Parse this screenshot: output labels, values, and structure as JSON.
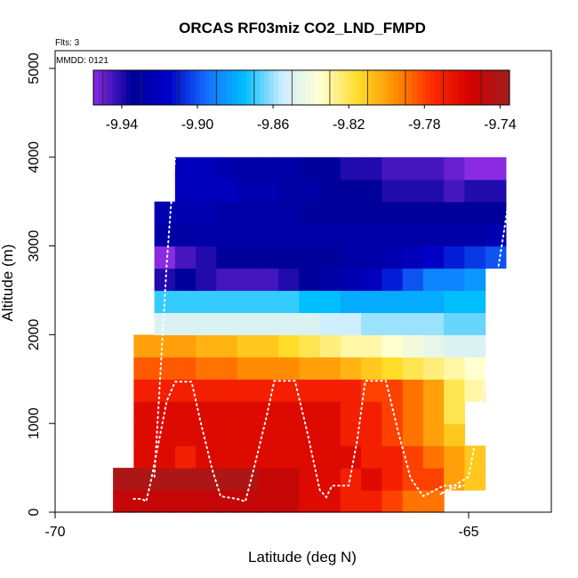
{
  "chart_data": {
    "type": "heatmap",
    "title": "ORCAS RF03miz CO2_LND_FMPD",
    "annotations": {
      "flights": "Flts: 3",
      "date": "MMDD: 0121"
    },
    "xlabel": "Latitude (deg N)",
    "ylabel": "Altitude (m)",
    "xlim": [
      -70,
      -64
    ],
    "ylim": [
      0,
      5200
    ],
    "x_ticks": [
      -70,
      -65
    ],
    "y_ticks": [
      0,
      1000,
      2000,
      3000,
      4000,
      5000
    ],
    "colorbar": {
      "min": -9.955,
      "max": -9.735,
      "ticks": [
        "-9.94",
        "-9.90",
        "-9.86",
        "-9.82",
        "-9.78",
        "-9.74"
      ],
      "tick_values": [
        -9.94,
        -9.9,
        -9.86,
        -9.82,
        -9.78,
        -9.74
      ],
      "colors": [
        "#8a2be2",
        "#00009a",
        "#0000c8",
        "#1470ff",
        "#00bfff",
        "#cfeeff",
        "#ffffd0",
        "#ffdc28",
        "#ff8c00",
        "#ff2800",
        "#d20000",
        "#a01e1e"
      ]
    },
    "grid": {
      "lat_start": -69.3,
      "lat_step": 0.25,
      "alt_step": 250,
      "rows": [
        {
          "alt": 0,
          "start": 0,
          "values": [
            -9.75,
            -9.75,
            -9.75,
            -9.75,
            -9.75,
            -9.75,
            -9.75,
            -9.75,
            -9.75,
            -9.76,
            -9.76,
            -9.77,
            -9.77,
            -9.78,
            -9.79,
            -9.79
          ]
        },
        {
          "alt": 250,
          "start": 0,
          "values": [
            -9.74,
            -9.74,
            -9.74,
            -9.74,
            -9.74,
            -9.74,
            -9.74,
            -9.75,
            -9.75,
            -9.76,
            -9.76,
            -9.77,
            -9.76,
            -9.77,
            -9.78,
            -9.78,
            -9.8,
            -9.81
          ]
        },
        {
          "alt": 500,
          "start": 1,
          "values": [
            -9.76,
            -9.76,
            -9.77,
            -9.76,
            -9.76,
            -9.76,
            -9.76,
            -9.76,
            -9.76,
            -9.76,
            -9.76,
            -9.77,
            -9.77,
            -9.78,
            -9.79,
            -9.8,
            -9.81
          ]
        },
        {
          "alt": 750,
          "start": 1,
          "values": [
            -9.76,
            -9.76,
            -9.76,
            -9.76,
            -9.76,
            -9.76,
            -9.76,
            -9.76,
            -9.76,
            -9.76,
            -9.77,
            -9.77,
            -9.78,
            -9.79,
            -9.8,
            -9.81
          ]
        },
        {
          "alt": 1000,
          "start": 1,
          "values": [
            -9.76,
            -9.76,
            -9.76,
            -9.76,
            -9.76,
            -9.76,
            -9.76,
            -9.76,
            -9.76,
            -9.76,
            -9.77,
            -9.77,
            -9.78,
            -9.79,
            -9.8,
            -9.82
          ]
        },
        {
          "alt": 1250,
          "start": 1,
          "values": [
            -9.77,
            -9.77,
            -9.77,
            -9.77,
            -9.77,
            -9.77,
            -9.77,
            -9.77,
            -9.77,
            -9.77,
            -9.77,
            -9.78,
            -9.78,
            -9.79,
            -9.8,
            -9.82,
            -9.83
          ]
        },
        {
          "alt": 1500,
          "start": 1,
          "values": [
            -9.785,
            -9.785,
            -9.785,
            -9.79,
            -9.79,
            -9.795,
            -9.795,
            -9.795,
            -9.8,
            -9.8,
            -9.805,
            -9.81,
            -9.815,
            -9.82,
            -9.825,
            -9.83,
            -9.835
          ]
        },
        {
          "alt": 1750,
          "start": 1,
          "values": [
            -9.8,
            -9.8,
            -9.8,
            -9.805,
            -9.805,
            -9.81,
            -9.81,
            -9.815,
            -9.82,
            -9.825,
            -9.83,
            -9.83,
            -9.835,
            -9.84,
            -9.845,
            -9.85,
            -9.85
          ]
        },
        {
          "alt": 2000,
          "start": 2,
          "values": [
            -9.85,
            -9.85,
            -9.85,
            -9.85,
            -9.85,
            -9.85,
            -9.85,
            -9.85,
            -9.855,
            -9.855,
            -9.86,
            -9.86,
            -9.86,
            -9.86,
            -9.865,
            -9.865
          ]
        },
        {
          "alt": 2250,
          "start": 2,
          "values": [
            -9.87,
            -9.87,
            -9.87,
            -9.87,
            -9.87,
            -9.87,
            -9.87,
            -9.875,
            -9.875,
            -9.88,
            -9.88,
            -9.88,
            -9.88,
            -9.88,
            -9.875,
            -9.875
          ]
        },
        {
          "alt": 2500,
          "start": 2,
          "values": [
            -9.94,
            -9.935,
            -9.94,
            -9.945,
            -9.945,
            -9.945,
            -9.94,
            -9.935,
            -9.93,
            -9.925,
            -9.92,
            -9.91,
            -9.9,
            -9.89,
            -9.89,
            -9.885
          ]
        },
        {
          "alt": 2750,
          "start": 2,
          "values": [
            -9.955,
            -9.945,
            -9.94,
            -9.935,
            -9.935,
            -9.935,
            -9.935,
            -9.935,
            -9.935,
            -9.93,
            -9.93,
            -9.925,
            -9.92,
            -9.915,
            -9.91,
            -9.905,
            -9.9
          ]
        },
        {
          "alt": 3000,
          "start": 2,
          "values": [
            -9.93,
            -9.93,
            -9.93,
            -9.93,
            -9.93,
            -9.93,
            -9.93,
            -9.93,
            -9.93,
            -9.93,
            -9.93,
            -9.93,
            -9.93,
            -9.93,
            -9.93,
            -9.93,
            -9.925
          ]
        },
        {
          "alt": 3250,
          "start": 2,
          "values": [
            -9.925,
            -9.925,
            -9.925,
            -9.93,
            -9.93,
            -9.93,
            -9.93,
            -9.935,
            -9.935,
            -9.935,
            -9.935,
            -9.935,
            -9.935,
            -9.935,
            -9.935,
            -9.935,
            -9.935
          ]
        },
        {
          "alt": 3500,
          "start": 3,
          "values": [
            -9.92,
            -9.92,
            -9.92,
            -9.925,
            -9.925,
            -9.93,
            -9.93,
            -9.935,
            -9.935,
            -9.935,
            -9.94,
            -9.94,
            -9.94,
            -9.945,
            -9.94,
            -9.94
          ]
        },
        {
          "alt": 3750,
          "start": 3,
          "values": [
            -9.92,
            -9.92,
            -9.925,
            -9.93,
            -9.93,
            -9.93,
            -9.935,
            -9.935,
            -9.94,
            -9.94,
            -9.945,
            -9.945,
            -9.945,
            -9.95,
            -9.955,
            -9.955
          ]
        }
      ]
    },
    "flight_track": [
      [
        -69.05,
        150
      ],
      [
        -68.95,
        150
      ],
      [
        -68.9,
        120
      ],
      [
        -68.85,
        320
      ],
      [
        -68.75,
        780
      ],
      [
        -68.65,
        1250
      ],
      [
        -68.55,
        1470
      ],
      [
        -68.35,
        1470
      ],
      [
        -68.25,
        1050
      ],
      [
        -68.1,
        480
      ],
      [
        -68.0,
        180
      ],
      [
        -67.8,
        150
      ],
      [
        -67.7,
        120
      ],
      [
        -67.6,
        480
      ],
      [
        -67.45,
        1050
      ],
      [
        -67.35,
        1480
      ],
      [
        -67.1,
        1480
      ],
      [
        -66.95,
        900
      ],
      [
        -66.8,
        250
      ],
      [
        -66.72,
        170
      ],
      [
        -66.65,
        300
      ],
      [
        -66.45,
        300
      ],
      [
        -66.35,
        800
      ],
      [
        -66.25,
        1480
      ],
      [
        -66.0,
        1480
      ],
      [
        -65.85,
        900
      ],
      [
        -65.7,
        380
      ],
      [
        -65.55,
        180
      ],
      [
        -65.3,
        300
      ],
      [
        -65.05,
        300
      ],
      [
        -65.2,
        260
      ],
      [
        -65.35,
        200
      ],
      [
        -65.0,
        400
      ],
      [
        -64.9,
        900
      ],
      [
        -64.8,
        1500
      ],
      [
        -64.75,
        2100
      ],
      [
        -64.65,
        2700
      ],
      [
        -64.55,
        3300
      ],
      [
        -64.45,
        3980
      ]
    ],
    "ascent_track": [
      [
        -68.8,
        400
      ],
      [
        -68.75,
        1200
      ],
      [
        -68.7,
        2000
      ],
      [
        -68.65,
        2800
      ],
      [
        -68.6,
        3450
      ],
      [
        -68.55,
        3980
      ]
    ]
  }
}
